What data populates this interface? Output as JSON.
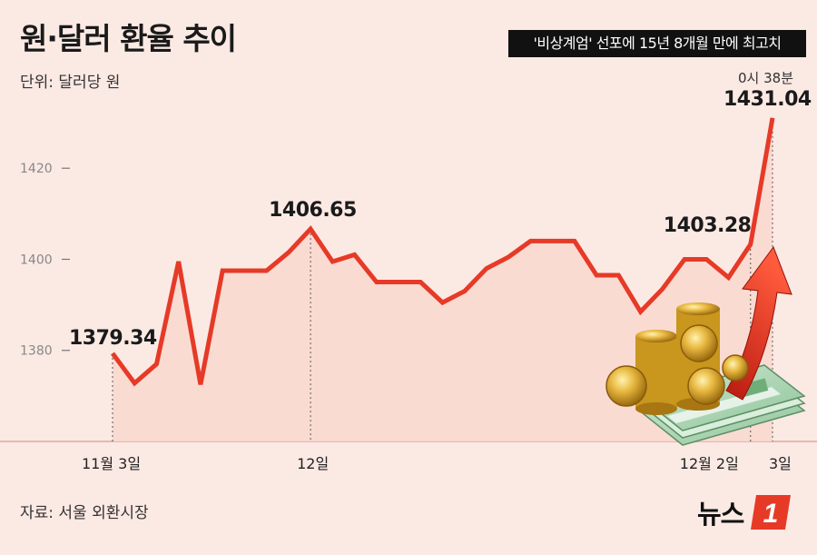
{
  "title": "원·달러 환율 추이",
  "subtitle": "'비상계엄' 선포에 15년 8개월 만에 최고치",
  "unit_label": "단위: 달러당 원",
  "source_label": "자료:  서울 외환시장",
  "logo_text": "뉴스",
  "logo_mark": "1",
  "colors": {
    "line": "#e63a27",
    "area": "#f9d8cf",
    "background": "#fbe9e4",
    "accent": "#e63a27"
  },
  "chart_data": {
    "type": "line",
    "title": "원·달러 환율 추이",
    "ylabel": "단위: 달러당 원",
    "ylim": [
      1360,
      1435
    ],
    "yticks": [
      1380,
      1400,
      1420
    ],
    "x_tick_labels": [
      {
        "index": 0,
        "label": "11월 3일"
      },
      {
        "index": 9,
        "label": "12일"
      },
      {
        "index": 29,
        "label": "12월 2일"
      },
      {
        "index": 30,
        "label": "3일"
      }
    ],
    "values": [
      1379.34,
      1372.8,
      1377.0,
      1399.5,
      1372.5,
      1397.5,
      1397.5,
      1397.5,
      1401.5,
      1406.65,
      1399.5,
      1401.0,
      1395.0,
      1395.0,
      1395.0,
      1390.5,
      1393.0,
      1398.0,
      1400.5,
      1404.0,
      1404.0,
      1404.0,
      1396.5,
      1396.5,
      1388.5,
      1393.5,
      1400.0,
      1400.0,
      1396.0,
      1403.28,
      1431.04
    ],
    "annotations": [
      {
        "index": 0,
        "label": "1379.34"
      },
      {
        "index": 9,
        "label": "1406.65"
      },
      {
        "index": 29,
        "label": "1403.28"
      },
      {
        "index": 30,
        "label": "1431.04",
        "note": "0시 38분"
      }
    ],
    "grid": false
  }
}
